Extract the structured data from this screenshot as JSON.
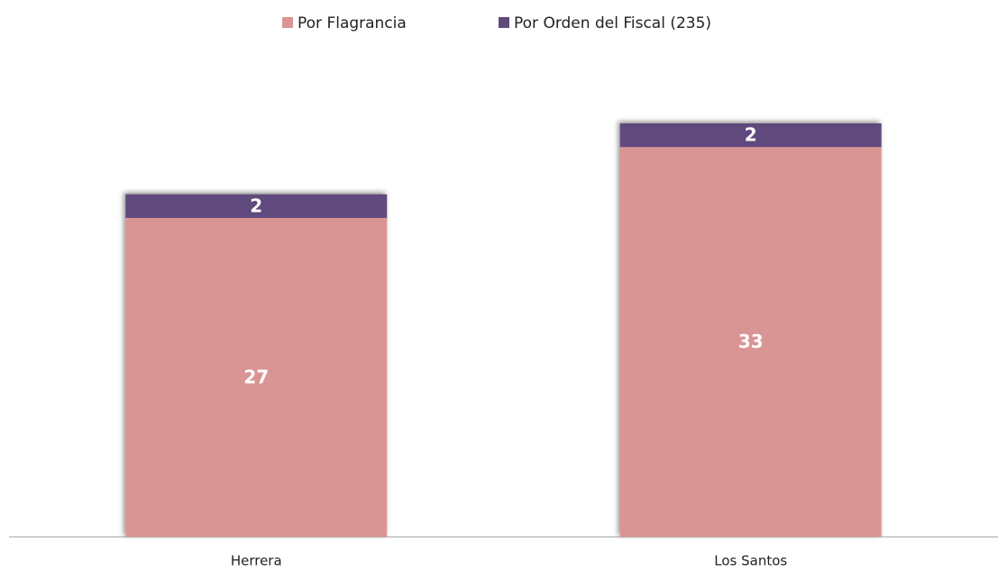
{
  "chart_data": {
    "type": "bar",
    "stacked": true,
    "categories": [
      "Herrera",
      "Los Santos"
    ],
    "series": [
      {
        "name": "Por Flagrancia",
        "color": "#d99594",
        "values": [
          27,
          33
        ]
      },
      {
        "name": "Por Orden del Fiscal (235)",
        "color": "#604a7b",
        "values": [
          2,
          2
        ]
      }
    ],
    "legend": "top"
  }
}
